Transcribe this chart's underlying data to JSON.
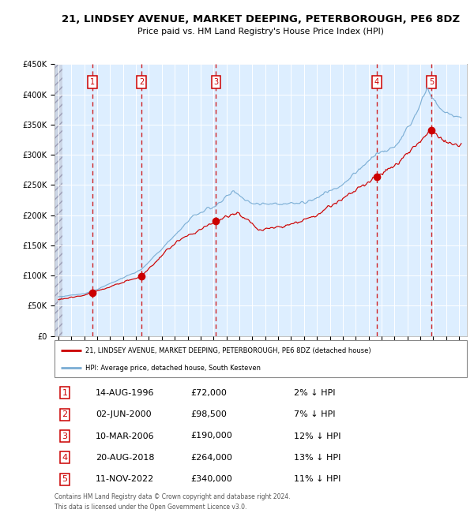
{
  "title": "21, LINDSEY AVENUE, MARKET DEEPING, PETERBOROUGH, PE6 8DZ",
  "subtitle": "Price paid vs. HM Land Registry's House Price Index (HPI)",
  "y_min": 0,
  "y_max": 450000,
  "y_ticks": [
    0,
    50000,
    100000,
    150000,
    200000,
    250000,
    300000,
    350000,
    400000,
    450000
  ],
  "y_tick_labels": [
    "£0",
    "£50K",
    "£100K",
    "£150K",
    "£200K",
    "£250K",
    "£300K",
    "£350K",
    "£400K",
    "£450K"
  ],
  "sale_dates_decimal": [
    1996.617,
    2000.417,
    2006.19,
    2018.638,
    2022.864
  ],
  "sale_prices": [
    72000,
    98500,
    190000,
    264000,
    340000
  ],
  "sale_labels": [
    "1",
    "2",
    "3",
    "4",
    "5"
  ],
  "hpi_color": "#7aadd4",
  "sale_color": "#cc0000",
  "dot_color": "#cc0000",
  "vline_color": "#cc0000",
  "bg_color": "#ddeeff",
  "grid_color": "#ffffff",
  "legend_line1": "21, LINDSEY AVENUE, MARKET DEEPING, PETERBOROUGH, PE6 8DZ (detached house)",
  "legend_line2": "HPI: Average price, detached house, South Kesteven",
  "table_data": [
    [
      "1",
      "14-AUG-1996",
      "£72,000",
      "2% ↓ HPI"
    ],
    [
      "2",
      "02-JUN-2000",
      "£98,500",
      "7% ↓ HPI"
    ],
    [
      "3",
      "10-MAR-2006",
      "£190,000",
      "12% ↓ HPI"
    ],
    [
      "4",
      "20-AUG-2018",
      "£264,000",
      "13% ↓ HPI"
    ],
    [
      "5",
      "11-NOV-2022",
      "£340,000",
      "11% ↓ HPI"
    ]
  ],
  "footer": "Contains HM Land Registry data © Crown copyright and database right 2024.\nThis data is licensed under the Open Government Licence v3.0."
}
